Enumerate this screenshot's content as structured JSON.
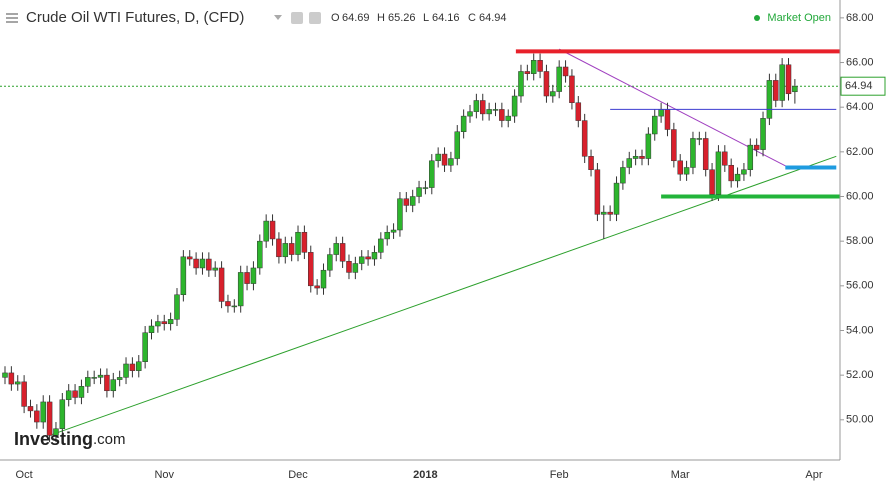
{
  "chart_data": {
    "type": "candlestick",
    "title": "Crude Oil WTI Futures, D, (CFD)",
    "ohlc_labels": [
      "O",
      "H",
      "L",
      "C"
    ],
    "status": "Market Open",
    "logo": {
      "name": "Investing",
      "suffix": ".com"
    },
    "categories": [
      null,
      null,
      null,
      "Oct",
      null,
      null,
      null,
      null,
      null,
      null,
      null,
      null,
      null,
      null,
      null,
      null,
      null,
      null,
      null,
      null,
      null,
      null,
      null,
      null,
      null,
      "Nov",
      null,
      null,
      null,
      null,
      null,
      null,
      null,
      null,
      null,
      null,
      null,
      null,
      null,
      null,
      null,
      null,
      null,
      null,
      null,
      null,
      "Dec",
      null,
      null,
      null,
      null,
      null,
      null,
      null,
      null,
      null,
      null,
      null,
      null,
      null,
      null,
      null,
      null,
      null,
      null,
      null,
      "2018",
      null,
      null,
      null,
      null,
      null,
      null,
      null,
      null,
      null,
      null,
      null,
      null,
      null,
      null,
      null,
      null,
      null,
      null,
      null,
      null,
      "Feb",
      null,
      null,
      null,
      null,
      null,
      null,
      null,
      null,
      null,
      null,
      null,
      null,
      null,
      null,
      null,
      null,
      null,
      null,
      "Mar",
      null,
      null,
      null,
      null,
      null,
      null,
      null,
      null,
      null,
      null,
      null,
      null,
      null,
      null,
      null,
      null,
      null,
      null,
      null,
      null,
      "Apr"
    ],
    "open": [
      51.9,
      52.1,
      51.6,
      51.7,
      50.6,
      50.4,
      49.9,
      50.8,
      49.3,
      49.6,
      50.9,
      51.3,
      51.0,
      51.5,
      51.9,
      51.9,
      52.0,
      51.3,
      51.8,
      51.9,
      52.5,
      52.2,
      52.6,
      53.9,
      54.2,
      54.4,
      54.3,
      54.5,
      55.6,
      57.3,
      57.2,
      56.8,
      57.2,
      56.7,
      56.8,
      55.3,
      55.1,
      55.1,
      56.6,
      56.1,
      56.8,
      58.0,
      58.9,
      58.1,
      57.3,
      57.9,
      57.4,
      58.4,
      57.5,
      56.0,
      55.9,
      56.7,
      57.4,
      57.9,
      57.1,
      56.6,
      57.0,
      57.3,
      57.2,
      57.5,
      58.1,
      58.4,
      58.5,
      59.9,
      59.6,
      60.0,
      60.4,
      60.4,
      61.6,
      61.9,
      61.4,
      61.7,
      62.9,
      63.6,
      63.8,
      64.3,
      63.7,
      63.9,
      63.9,
      63.4,
      63.6,
      64.5,
      65.6,
      65.5,
      66.1,
      65.6,
      64.5,
      64.7,
      65.8,
      65.4,
      64.2,
      63.4,
      61.8,
      61.2,
      59.2,
      59.3,
      59.2,
      60.6,
      61.3,
      61.7,
      61.8,
      61.7,
      62.8,
      63.6,
      63.9,
      63.0,
      61.6,
      61.0,
      61.3,
      62.6,
      62.6,
      61.2,
      60.1,
      62.0,
      61.4,
      60.7,
      61.0,
      61.2,
      62.3,
      62.1,
      63.5,
      65.2,
      64.3,
      65.9,
      64.69,
      null,
      null,
      null
    ],
    "high": [
      52.4,
      52.4,
      52.0,
      52.0,
      50.9,
      50.7,
      51.1,
      51.1,
      49.9,
      51.2,
      51.6,
      51.6,
      51.8,
      52.2,
      52.2,
      52.3,
      52.3,
      52.1,
      52.2,
      52.8,
      52.8,
      52.9,
      54.2,
      54.5,
      54.7,
      54.7,
      54.8,
      55.9,
      57.6,
      57.6,
      57.5,
      57.5,
      57.5,
      57.1,
      57.1,
      55.6,
      55.4,
      56.9,
      56.9,
      57.1,
      58.3,
      59.2,
      59.2,
      58.4,
      58.2,
      58.2,
      58.7,
      58.7,
      57.8,
      56.3,
      57.0,
      57.7,
      58.2,
      58.2,
      57.4,
      57.3,
      57.6,
      57.6,
      57.8,
      58.4,
      58.7,
      58.8,
      60.2,
      60.2,
      60.3,
      60.7,
      60.7,
      61.9,
      62.2,
      62.2,
      62.0,
      63.2,
      63.9,
      64.1,
      64.6,
      64.6,
      64.2,
      64.2,
      64.2,
      63.9,
      64.8,
      65.9,
      65.9,
      66.4,
      66.4,
      65.9,
      65.0,
      66.1,
      66.1,
      65.7,
      64.5,
      63.7,
      62.1,
      61.5,
      59.6,
      59.6,
      60.9,
      61.6,
      62.0,
      62.1,
      62.1,
      63.1,
      63.9,
      64.2,
      64.2,
      63.3,
      61.9,
      61.6,
      62.9,
      62.9,
      62.9,
      61.5,
      62.3,
      62.3,
      61.7,
      61.3,
      61.5,
      62.6,
      62.6,
      63.8,
      65.5,
      65.5,
      66.2,
      66.2,
      65.26,
      null,
      null,
      null
    ],
    "low": [
      51.6,
      51.3,
      51.3,
      50.3,
      50.1,
      49.6,
      49.6,
      49.0,
      49.0,
      49.3,
      50.6,
      50.7,
      50.7,
      51.2,
      51.6,
      51.6,
      51.0,
      51.0,
      51.5,
      51.6,
      51.9,
      51.9,
      52.3,
      53.6,
      53.9,
      54.0,
      54.0,
      54.2,
      55.3,
      56.9,
      56.5,
      56.5,
      56.4,
      56.4,
      55.0,
      54.8,
      54.8,
      54.8,
      55.8,
      55.8,
      56.5,
      57.7,
      57.8,
      57.0,
      57.0,
      57.1,
      57.1,
      57.2,
      55.7,
      55.6,
      55.6,
      56.4,
      57.1,
      56.8,
      56.3,
      56.3,
      56.7,
      56.9,
      56.9,
      57.2,
      57.8,
      58.1,
      58.2,
      59.3,
      59.3,
      59.7,
      60.1,
      60.1,
      61.3,
      61.1,
      61.1,
      61.4,
      62.6,
      63.3,
      63.5,
      63.4,
      63.4,
      63.6,
      63.1,
      63.1,
      63.3,
      64.2,
      65.2,
      65.2,
      65.3,
      64.2,
      64.2,
      64.4,
      65.1,
      63.9,
      63.1,
      61.5,
      60.9,
      58.9,
      58.1,
      58.9,
      58.9,
      60.3,
      61.0,
      61.4,
      61.4,
      61.4,
      62.5,
      63.3,
      62.7,
      61.3,
      60.7,
      60.7,
      61.0,
      62.3,
      60.9,
      59.8,
      59.8,
      61.1,
      60.4,
      60.4,
      60.7,
      60.9,
      61.8,
      61.8,
      63.2,
      64.0,
      64.0,
      64.3,
      64.16,
      null,
      null,
      null
    ],
    "close": [
      52.1,
      51.6,
      51.7,
      50.6,
      50.4,
      49.9,
      50.8,
      49.3,
      49.6,
      50.9,
      51.3,
      51.0,
      51.5,
      51.9,
      51.9,
      52.0,
      51.3,
      51.8,
      51.9,
      52.5,
      52.2,
      52.6,
      53.9,
      54.2,
      54.4,
      54.3,
      54.5,
      55.6,
      57.3,
      57.2,
      56.8,
      57.2,
      56.7,
      56.8,
      55.3,
      55.1,
      55.1,
      56.6,
      56.1,
      56.8,
      58.0,
      58.9,
      58.1,
      57.3,
      57.9,
      57.4,
      58.4,
      57.5,
      56.0,
      55.9,
      56.7,
      57.4,
      57.9,
      57.1,
      56.6,
      57.0,
      57.3,
      57.2,
      57.5,
      58.1,
      58.4,
      58.5,
      59.9,
      59.6,
      60.0,
      60.4,
      60.4,
      61.6,
      61.9,
      61.4,
      61.7,
      62.9,
      63.6,
      63.8,
      64.3,
      63.7,
      63.9,
      63.9,
      63.4,
      63.6,
      64.5,
      65.6,
      65.5,
      66.1,
      65.6,
      64.5,
      64.7,
      65.8,
      65.4,
      64.2,
      63.4,
      61.8,
      61.2,
      59.2,
      59.3,
      59.2,
      60.6,
      61.3,
      61.7,
      61.8,
      61.7,
      62.8,
      63.6,
      63.9,
      63.0,
      61.6,
      61.0,
      61.3,
      62.6,
      62.6,
      61.2,
      60.1,
      62.0,
      61.4,
      60.7,
      61.0,
      61.2,
      62.3,
      62.1,
      63.5,
      65.2,
      64.3,
      65.9,
      64.6,
      64.94,
      null,
      null,
      null
    ],
    "up_color": "#2db52d",
    "down_color": "#d8202c",
    "ylim": [
      48.2,
      68.8
    ],
    "yticks": [
      {
        "value": 50,
        "label": "50.00"
      },
      {
        "value": 52,
        "label": "52.00"
      },
      {
        "value": 54,
        "label": "54.00"
      },
      {
        "value": 56,
        "label": "56.00"
      },
      {
        "value": 58,
        "label": "58.00"
      },
      {
        "value": 60,
        "label": "60.00"
      },
      {
        "value": 62,
        "label": "62.00"
      },
      {
        "value": 64,
        "label": "64.00"
      },
      {
        "value": 66,
        "label": "66.00"
      },
      {
        "value": 68,
        "label": "68.00"
      }
    ],
    "grid": false,
    "levels": [
      {
        "value": 66.5,
        "color": "#e8202a",
        "width": 4,
        "from": 80.2,
        "to": 132
      },
      {
        "value": 60.0,
        "color": "#22b43a",
        "width": 4,
        "from": 103,
        "to": 132
      },
      {
        "value": 61.3,
        "color": "#1e9be0",
        "width": 4,
        "from": 122.5,
        "to": 130.5
      },
      {
        "value": 63.9,
        "color": "#3c3cd0",
        "width": 1,
        "from": 95,
        "to": 130.5
      }
    ],
    "trendlines": [
      {
        "color": "#2ca02c",
        "points": [
          [
            7,
            49.3
          ],
          [
            130.5,
            61.8
          ]
        ]
      },
      {
        "color": "#a040c0",
        "points": [
          [
            87,
            66.6
          ],
          [
            123,
            61.3
          ]
        ]
      }
    ],
    "last_price_color": "#2ca02c"
  }
}
